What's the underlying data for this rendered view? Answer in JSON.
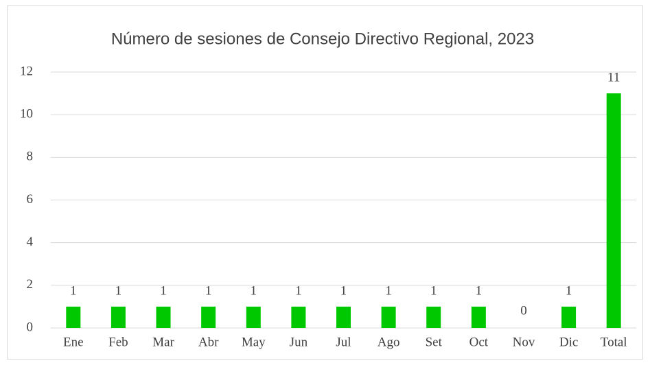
{
  "chart_data": {
    "type": "bar",
    "title": "Número de sesiones de Consejo Directivo Regional, 2023",
    "categories": [
      "Ene",
      "Feb",
      "Mar",
      "Abr",
      "May",
      "Jun",
      "Jul",
      "Ago",
      "Set",
      "Oct",
      "Nov",
      "Dic",
      "Total"
    ],
    "values": [
      1,
      1,
      1,
      1,
      1,
      1,
      1,
      1,
      1,
      1,
      0,
      1,
      11
    ],
    "color": "#00c800",
    "ylim": [
      0,
      12
    ],
    "yticks": [
      0,
      2,
      4,
      6,
      8,
      10,
      12
    ],
    "grid": true,
    "data_labels": true
  }
}
